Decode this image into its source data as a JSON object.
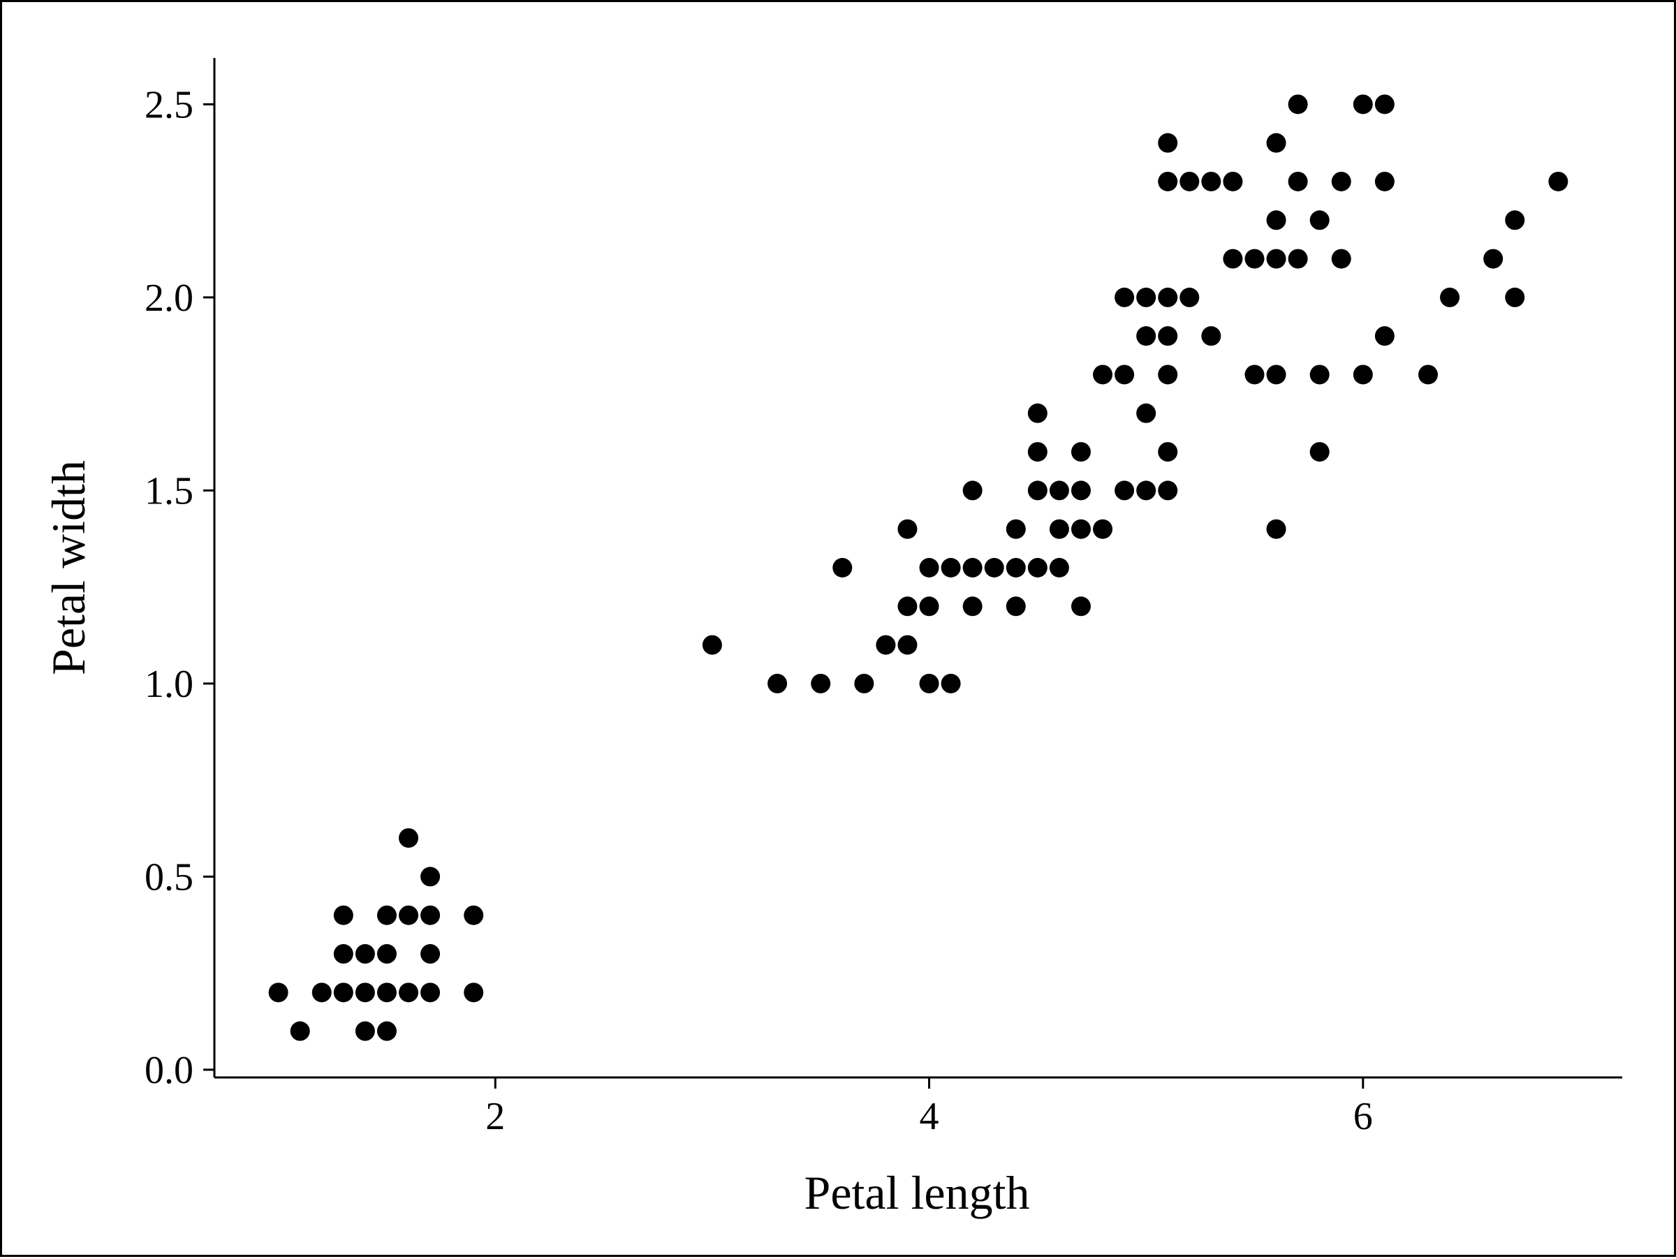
{
  "chart_data": {
    "type": "scatter",
    "title": "",
    "xlabel": "Petal length",
    "ylabel": "Petal width",
    "xlim": [
      0.705,
      7.195
    ],
    "ylim": [
      -0.02,
      2.62
    ],
    "x_ticks": [
      2,
      4,
      6
    ],
    "x_tick_labels": [
      "2",
      "4",
      "6"
    ],
    "y_ticks": [
      0.0,
      0.5,
      1.0,
      1.5,
      2.0,
      2.5
    ],
    "y_tick_labels": [
      "0.0",
      "0.5",
      "1.0",
      "1.5",
      "2.0",
      "2.5"
    ],
    "grid": false,
    "legend": "none",
    "marker_color": "#000000",
    "points": [
      [
        1.0,
        0.2
      ],
      [
        1.1,
        0.1
      ],
      [
        1.2,
        0.2
      ],
      [
        1.3,
        0.2
      ],
      [
        1.3,
        0.3
      ],
      [
        1.3,
        0.4
      ],
      [
        1.4,
        0.1
      ],
      [
        1.4,
        0.2
      ],
      [
        1.4,
        0.3
      ],
      [
        1.5,
        0.1
      ],
      [
        1.5,
        0.2
      ],
      [
        1.5,
        0.3
      ],
      [
        1.5,
        0.4
      ],
      [
        1.6,
        0.2
      ],
      [
        1.6,
        0.4
      ],
      [
        1.6,
        0.6
      ],
      [
        1.7,
        0.2
      ],
      [
        1.7,
        0.3
      ],
      [
        1.7,
        0.4
      ],
      [
        1.7,
        0.5
      ],
      [
        1.9,
        0.2
      ],
      [
        1.9,
        0.4
      ],
      [
        3.0,
        1.1
      ],
      [
        3.3,
        1.0
      ],
      [
        3.5,
        1.0
      ],
      [
        3.6,
        1.3
      ],
      [
        3.7,
        1.0
      ],
      [
        3.8,
        1.1
      ],
      [
        3.9,
        1.1
      ],
      [
        3.9,
        1.2
      ],
      [
        3.9,
        1.4
      ],
      [
        4.0,
        1.0
      ],
      [
        4.0,
        1.2
      ],
      [
        4.0,
        1.3
      ],
      [
        4.1,
        1.0
      ],
      [
        4.1,
        1.3
      ],
      [
        4.2,
        1.2
      ],
      [
        4.2,
        1.3
      ],
      [
        4.2,
        1.5
      ],
      [
        4.3,
        1.3
      ],
      [
        4.4,
        1.2
      ],
      [
        4.4,
        1.3
      ],
      [
        4.4,
        1.4
      ],
      [
        4.5,
        1.3
      ],
      [
        4.5,
        1.5
      ],
      [
        4.5,
        1.6
      ],
      [
        4.5,
        1.7
      ],
      [
        4.6,
        1.3
      ],
      [
        4.6,
        1.4
      ],
      [
        4.6,
        1.5
      ],
      [
        4.7,
        1.2
      ],
      [
        4.7,
        1.4
      ],
      [
        4.7,
        1.5
      ],
      [
        4.7,
        1.6
      ],
      [
        4.8,
        1.4
      ],
      [
        4.8,
        1.8
      ],
      [
        4.9,
        1.5
      ],
      [
        4.9,
        1.8
      ],
      [
        4.9,
        2.0
      ],
      [
        5.0,
        1.5
      ],
      [
        5.0,
        1.7
      ],
      [
        5.0,
        1.9
      ],
      [
        5.0,
        2.0
      ],
      [
        5.1,
        1.5
      ],
      [
        5.1,
        1.6
      ],
      [
        5.1,
        1.8
      ],
      [
        5.1,
        1.9
      ],
      [
        5.1,
        2.0
      ],
      [
        5.1,
        2.3
      ],
      [
        5.1,
        2.4
      ],
      [
        5.2,
        2.0
      ],
      [
        5.2,
        2.3
      ],
      [
        5.3,
        1.9
      ],
      [
        5.3,
        2.3
      ],
      [
        5.4,
        2.1
      ],
      [
        5.4,
        2.3
      ],
      [
        5.5,
        1.8
      ],
      [
        5.5,
        2.1
      ],
      [
        5.6,
        1.4
      ],
      [
        5.6,
        1.8
      ],
      [
        5.6,
        2.1
      ],
      [
        5.6,
        2.2
      ],
      [
        5.6,
        2.4
      ],
      [
        5.7,
        2.1
      ],
      [
        5.7,
        2.3
      ],
      [
        5.7,
        2.5
      ],
      [
        5.8,
        1.6
      ],
      [
        5.8,
        1.8
      ],
      [
        5.8,
        2.2
      ],
      [
        5.9,
        2.1
      ],
      [
        5.9,
        2.3
      ],
      [
        6.0,
        1.8
      ],
      [
        6.0,
        2.5
      ],
      [
        6.1,
        1.9
      ],
      [
        6.1,
        2.3
      ],
      [
        6.1,
        2.5
      ],
      [
        6.3,
        1.8
      ],
      [
        6.4,
        2.0
      ],
      [
        6.6,
        2.1
      ],
      [
        6.7,
        2.0
      ],
      [
        6.7,
        2.2
      ],
      [
        6.9,
        2.3
      ]
    ]
  }
}
